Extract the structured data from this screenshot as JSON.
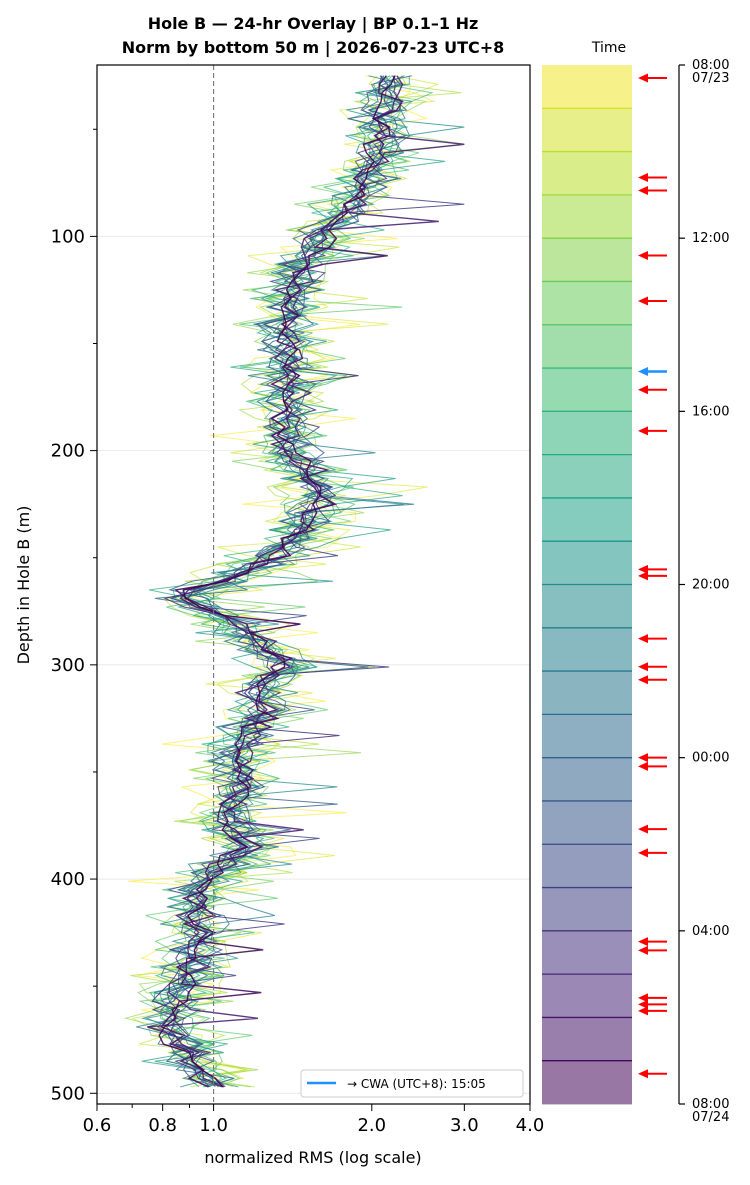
{
  "figure": {
    "title_line1": "Hole B — 24-hr Overlay  |  BP 0.1–1 Hz",
    "title_line2": "Norm by bottom 50 m  |  2026-07-23 UTC+8"
  },
  "chart_data": {
    "type": "line",
    "xlabel": "normalized RMS  (log scale)",
    "ylabel": "Depth in Hole B (m)",
    "x_scale": "log",
    "xlim": [
      0.6,
      4.0
    ],
    "ylim": [
      505,
      20
    ],
    "x_ticks": [
      "0.6",
      "0.8",
      "1.0",
      "2.0",
      "3.0",
      "4.0"
    ],
    "x_tick_values": [
      0.6,
      0.8,
      1.0,
      2.0,
      3.0,
      4.0
    ],
    "y_ticks": [
      100,
      200,
      300,
      400,
      500
    ],
    "reference_line_x": 1.0,
    "grid": "horizontal",
    "series_count": 24,
    "colormap": "viridis",
    "mean_profile": {
      "depth": [
        25,
        40,
        60,
        80,
        100,
        120,
        140,
        160,
        180,
        200,
        220,
        240,
        255,
        265,
        270,
        280,
        290,
        300,
        310,
        320,
        340,
        355,
        370,
        385,
        400,
        420,
        440,
        450,
        460,
        470,
        480,
        490,
        497
      ],
      "rms": [
        2.2,
        2.15,
        2.05,
        1.9,
        1.6,
        1.45,
        1.35,
        1.4,
        1.4,
        1.4,
        1.6,
        1.45,
        1.2,
        0.9,
        0.88,
        1.1,
        1.2,
        1.4,
        1.2,
        1.25,
        1.1,
        1.15,
        1.05,
        1.15,
        0.95,
        0.95,
        0.9,
        0.85,
        0.85,
        0.82,
        0.9,
        0.95,
        1.0
      ]
    },
    "legend": {
      "entry": "→ CWA (UTC+8): 15:05",
      "color": "#1e90ff",
      "location": "lower-right"
    },
    "colorbar": {
      "label": "Time",
      "n_bins": 24,
      "tick_labels": [
        {
          "hour": 0,
          "line1": "08:00",
          "line2": "07/23"
        },
        {
          "hour": 4,
          "line1": "12:00",
          "line2": ""
        },
        {
          "hour": 8,
          "line1": "16:00",
          "line2": ""
        },
        {
          "hour": 12,
          "line1": "20:00",
          "line2": ""
        },
        {
          "hour": 16,
          "line1": "00:00",
          "line2": ""
        },
        {
          "hour": 20,
          "line1": "04:00",
          "line2": ""
        },
        {
          "hour": 24,
          "line1": "08:00",
          "line2": "07/24"
        }
      ],
      "event_hours": [
        0.3,
        2.6,
        2.9,
        4.4,
        5.45,
        7.5,
        8.45,
        11.65,
        11.8,
        13.25,
        13.9,
        14.2,
        16.0,
        16.2,
        17.65,
        18.2,
        20.25,
        20.45,
        21.55,
        21.7,
        21.85,
        23.3
      ],
      "event_color": "#ff0000",
      "cwa_hour": 7.08,
      "cwa_color": "#1e90ff"
    }
  }
}
